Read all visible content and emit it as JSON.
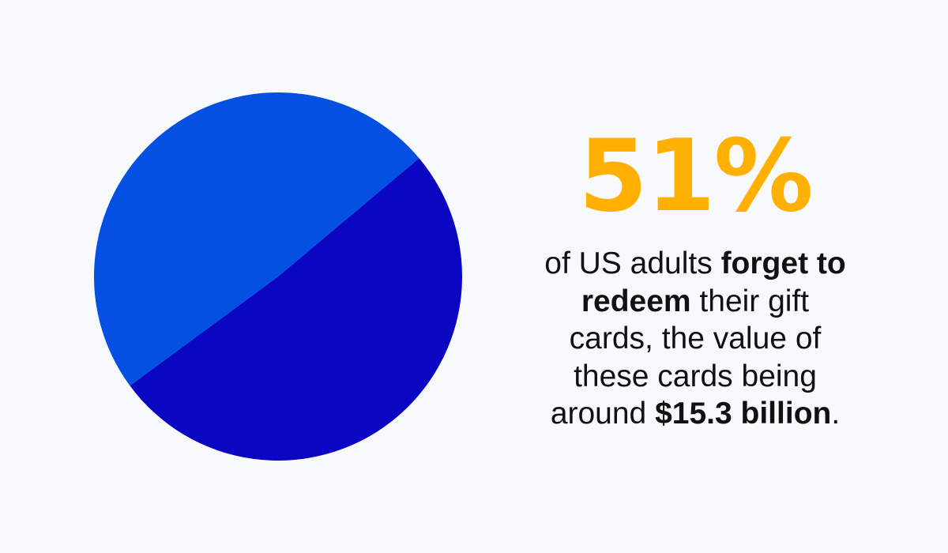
{
  "colors": {
    "background": "#f8f9fc",
    "accent": "#ffb000",
    "text": "#111111"
  },
  "chart_data": {
    "type": "pie",
    "values": [
      51,
      49
    ],
    "colors": [
      "#0a06c1",
      "#0450e3"
    ]
  },
  "stat": {
    "value": "51%",
    "line1_a": "of US adults ",
    "line1_b": "forget to",
    "line2_a": "redeem",
    "line2_b": " their gift",
    "line3": "cards, the value of",
    "line4": "these cards being",
    "line5_a": "around ",
    "line5_b": "$15.3 billion",
    "line5_c": "."
  }
}
